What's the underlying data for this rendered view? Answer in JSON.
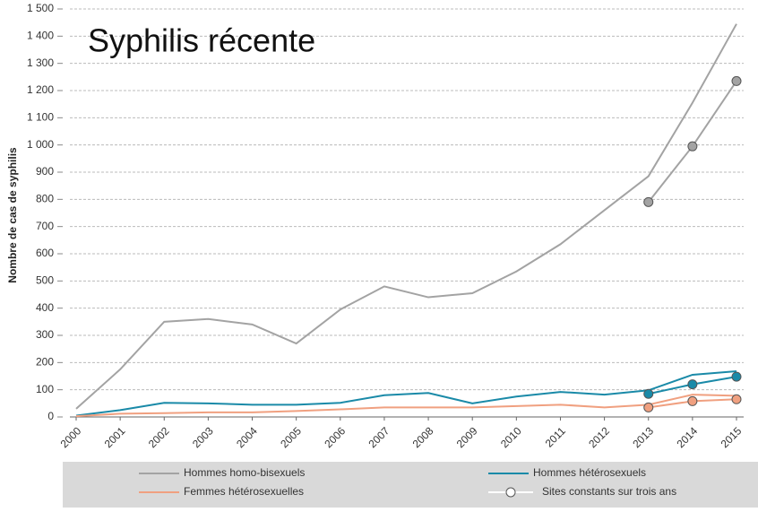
{
  "chart_data": {
    "type": "line",
    "title": "Syphilis récente",
    "ylabel": "Nombre de cas de syphilis",
    "x": [
      2000,
      2001,
      2002,
      2003,
      2004,
      2005,
      2006,
      2007,
      2008,
      2009,
      2010,
      2011,
      2012,
      2013,
      2014,
      2015
    ],
    "xlim": [
      2000,
      2015
    ],
    "xticks": [
      2000,
      2001,
      2002,
      2003,
      2004,
      2005,
      2006,
      2007,
      2008,
      2009,
      2010,
      2011,
      2012,
      2013,
      2014,
      2015
    ],
    "ylim": [
      0,
      1500
    ],
    "yticks": [
      0,
      100,
      200,
      300,
      400,
      500,
      600,
      700,
      800,
      900,
      {
        "value": 1000,
        "label": "1 000"
      },
      {
        "value": 1100,
        "label": "1 100"
      },
      {
        "value": 1200,
        "label": "1 200"
      },
      {
        "value": 1300,
        "label": "1 300"
      },
      {
        "value": 1400,
        "label": "1 400"
      },
      {
        "value": 1500,
        "label": "1 500"
      }
    ],
    "grid": true,
    "series": [
      {
        "name": "Hommes homo-bisexuels",
        "color": "#a3a3a3",
        "values": [
          30,
          175,
          350,
          360,
          340,
          270,
          395,
          480,
          440,
          455,
          535,
          635,
          760,
          885,
          1155,
          1445
        ]
      },
      {
        "name": "Hommes hétérosexuels",
        "color": "#1a8aa8",
        "values": [
          5,
          25,
          52,
          50,
          45,
          45,
          52,
          80,
          88,
          50,
          75,
          92,
          82,
          98,
          155,
          168
        ]
      },
      {
        "name": "Femmes hétérosexuelles",
        "color": "#f0a080",
        "values": [
          3,
          12,
          14,
          17,
          17,
          22,
          28,
          35,
          35,
          35,
          40,
          45,
          35,
          45,
          82,
          78
        ]
      }
    ],
    "constant_sites": {
      "name": "Sites constants sur trois ans",
      "x": [
        2013,
        2014,
        2015
      ],
      "series": [
        {
          "color": "#a3a3a3",
          "values": [
            790,
            995,
            1235
          ]
        },
        {
          "color": "#1a8aa8",
          "values": [
            85,
            120,
            148
          ]
        },
        {
          "color": "#f0a080",
          "values": [
            35,
            58,
            65
          ]
        }
      ]
    }
  }
}
